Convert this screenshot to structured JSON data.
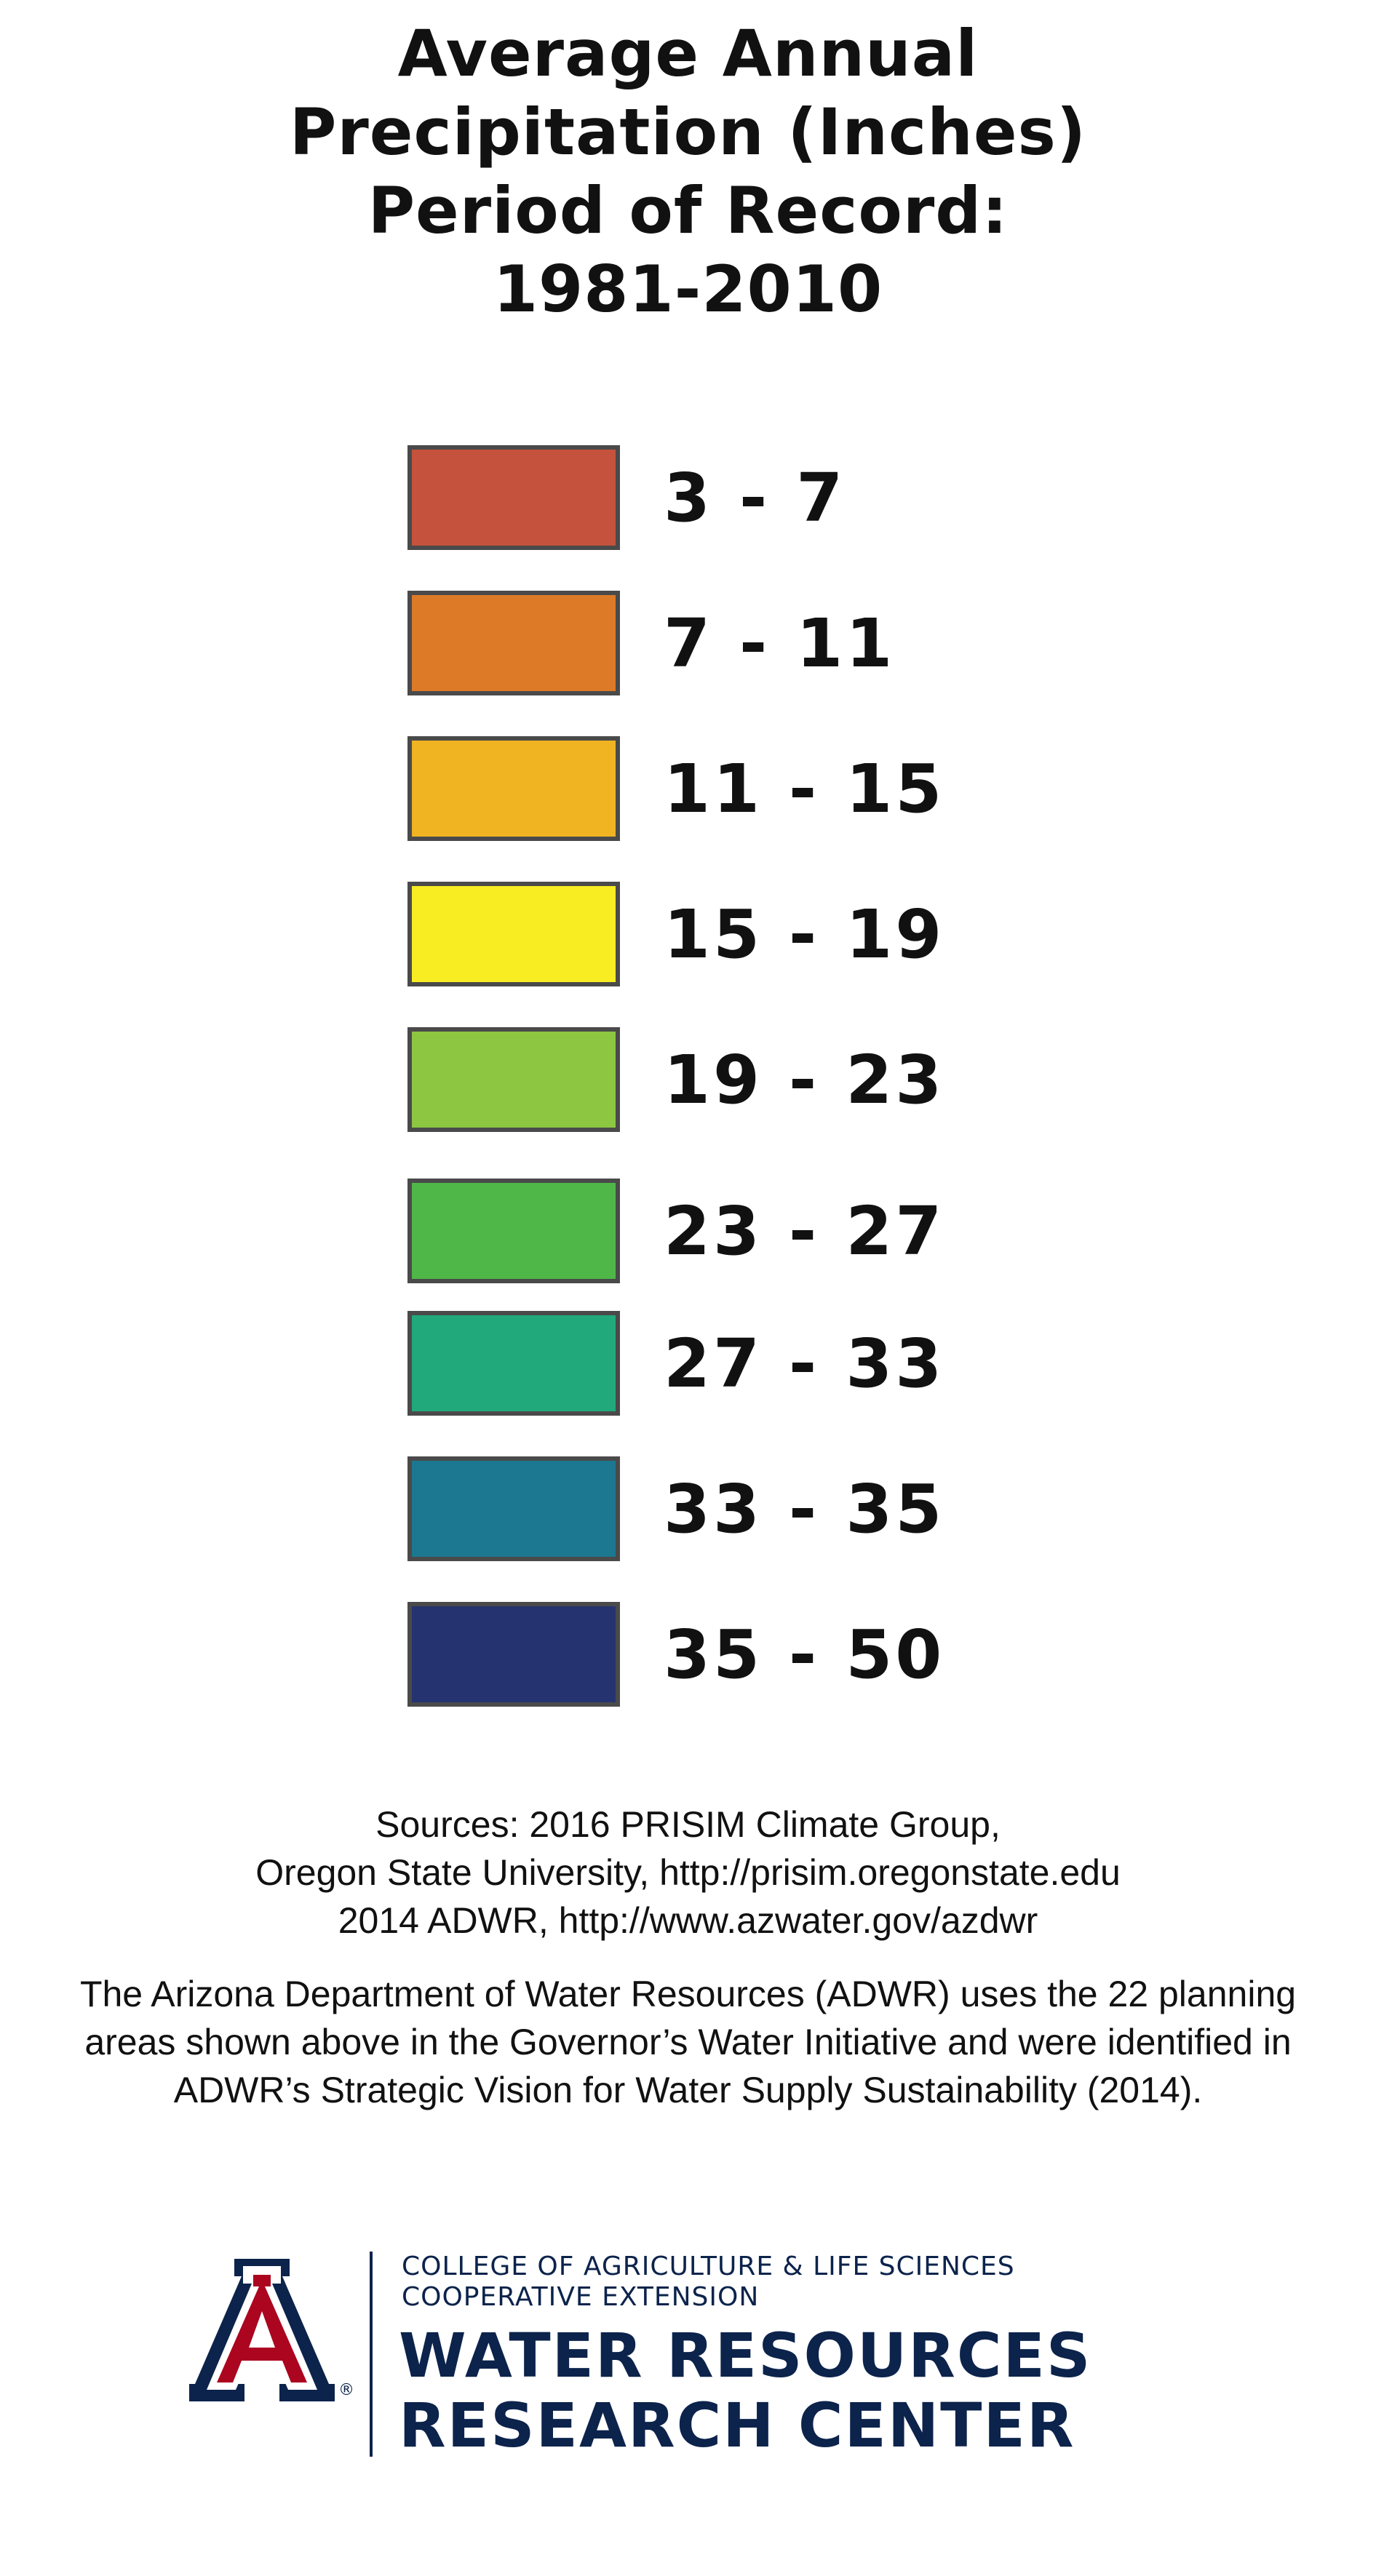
{
  "title": {
    "lines": [
      "Average Annual",
      "Precipitation (Inches)",
      "Period of Record:",
      "1981-2010"
    ]
  },
  "legend": {
    "items": [
      {
        "label": "3 - 7",
        "color": "#c5523c"
      },
      {
        "label": "7 - 11",
        "color": "#dc7a27"
      },
      {
        "label": "11 - 15",
        "color": "#f0b322"
      },
      {
        "label": "15 - 19",
        "color": "#f8ec22"
      },
      {
        "label": "19 - 23",
        "color": "#8dc641"
      },
      {
        "label": "23 - 27",
        "color": "#4fb748"
      },
      {
        "label": "27 - 33",
        "color": "#21a97c"
      },
      {
        "label": "33 - 35",
        "color": "#1c7891"
      },
      {
        "label": "35 - 50",
        "color": "#253370"
      }
    ]
  },
  "sources": {
    "lines": [
      "Sources: 2016 PRISIM Climate Group,",
      "Oregon State University, http://prisim.oregonstate.edu",
      "2014 ADWR, http://www.azwater.gov/azdwr"
    ]
  },
  "description": "The Arizona Department of Water Resources (ADWR) uses the 22 planning areas shown above in the Governor’s Water Initiative and were identified in ADWR’s Strategic Vision for Water Supply Sustainability (2014).",
  "logo": {
    "college_line1": "COLLEGE OF AGRICULTURE & LIFE SCIENCES",
    "college_line2": "COOPERATIVE EXTENSION",
    "center_line1": "WATER RESOURCES",
    "center_line2": "RESEARCH CENTER",
    "brand_navy": "#0c234b",
    "brand_red": "#ab0520",
    "icon": "university-of-arizona-a-logo"
  }
}
